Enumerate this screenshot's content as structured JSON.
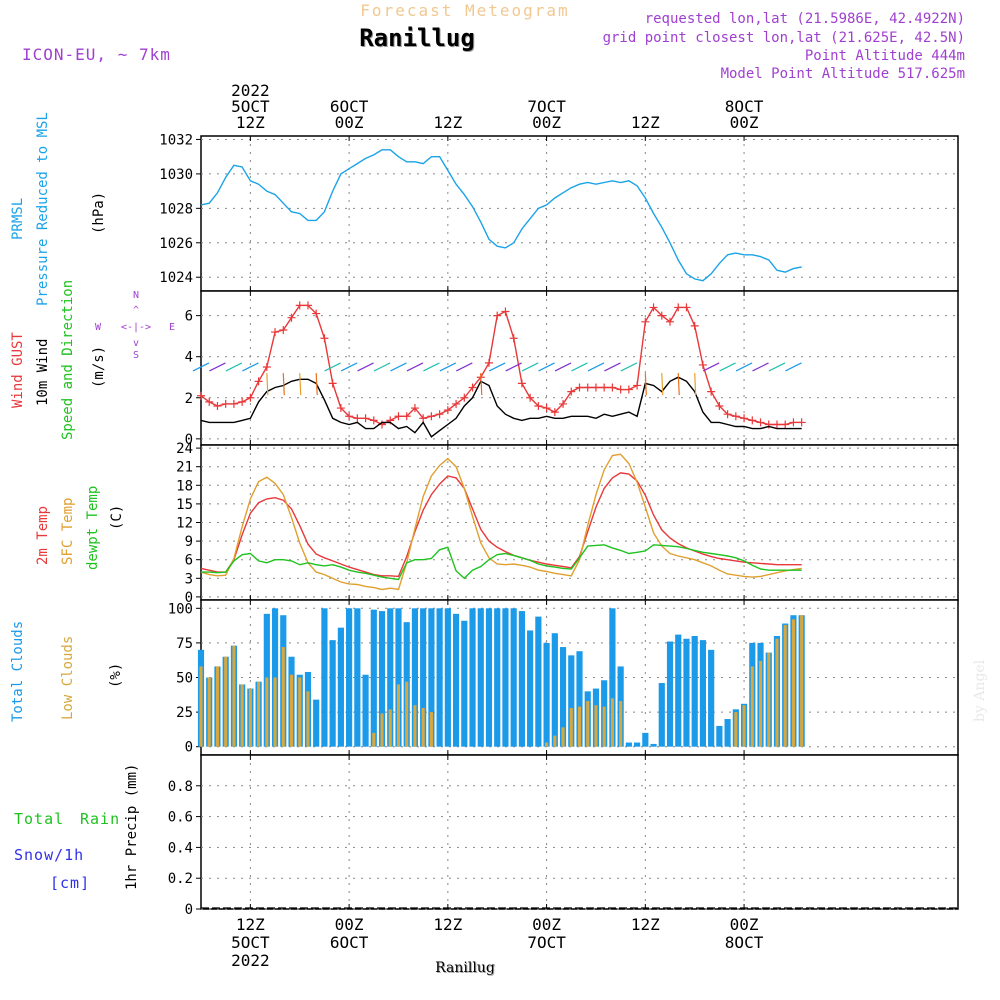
{
  "header": {
    "subtitle": "Forecast Meteogram",
    "title": "Ranillug",
    "model": "ICON-EU, ~ 7km",
    "requested": "requested lon,lat (21.5986E, 42.4922N)",
    "grid_point": "grid point closest lon,lat (21.625E, 42.5N)",
    "point_alt": "Point Altitude 444m",
    "model_alt": "Model Point Altitude 517.625m",
    "bottom_name": "Ranillug",
    "watermark": "by Angel"
  },
  "time_axis": {
    "start_hour": -6,
    "end_hour": 86,
    "top_labels": [
      {
        "hour": 0,
        "lines": [
          "2022",
          "5OCT",
          "12Z"
        ]
      },
      {
        "hour": 12,
        "lines": [
          "6OCT",
          "00Z"
        ]
      },
      {
        "hour": 24,
        "lines": [
          "12Z"
        ]
      },
      {
        "hour": 36,
        "lines": [
          "7OCT",
          "00Z"
        ]
      },
      {
        "hour": 48,
        "lines": [
          "12Z"
        ]
      },
      {
        "hour": 60,
        "lines": [
          "8OCT",
          "00Z"
        ]
      }
    ],
    "bottom_labels": [
      {
        "hour": 0,
        "lines": [
          "12Z",
          "5OCT",
          "2022"
        ]
      },
      {
        "hour": 12,
        "lines": [
          "00Z",
          "6OCT"
        ]
      },
      {
        "hour": 24,
        "lines": [
          "12Z"
        ]
      },
      {
        "hour": 36,
        "lines": [
          "00Z",
          "7OCT"
        ]
      },
      {
        "hour": 48,
        "lines": [
          "12Z"
        ]
      },
      {
        "hour": 60,
        "lines": [
          "00Z",
          "8OCT"
        ]
      }
    ]
  },
  "colors": {
    "pressure": "#1aa3e8",
    "gust": "#e8383a",
    "wind": "#000000",
    "wind_dir": "#1fc21f",
    "temp2m": "#e8383a",
    "sfc": "#e0a030",
    "dewpt": "#1fc21f",
    "clouds_total": "#1a9ae8",
    "clouds_low": "#d8a840",
    "rain": "#1fc21f",
    "snow": "#3030e8",
    "purple": "#a040d0",
    "subtitle": "#f0c890"
  },
  "panels": {
    "pressure": {
      "labels": [
        "PRMSL",
        "Pressure Reduced to MSL"
      ],
      "unit": "(hPa)"
    },
    "wind": {
      "labels": [
        "Wind GUST",
        "10m Wind",
        "Speed and Direction"
      ],
      "unit": "(m/s)",
      "compass": {
        "n": "N",
        "s": "S",
        "w": "W",
        "e": "E"
      }
    },
    "temp": {
      "labels": [
        "2m Temp",
        "SFC Temp",
        "dewpt Temp"
      ],
      "unit": "(C)"
    },
    "cloud": {
      "labels": [
        "Total Clouds",
        "Low Clouds"
      ],
      "unit": "(%)"
    },
    "precip": {
      "labels": [
        "Total",
        "Rain",
        "Snow/1h",
        "[cm]"
      ],
      "unit": "1hr Precip (mm)"
    }
  },
  "chart_data": [
    {
      "type": "line",
      "title": "PRMSL Pressure Reduced to MSL",
      "ylabel": "(hPa)",
      "ylim": [
        1023.2,
        1032.2
      ],
      "yticks": [
        1024,
        1026,
        1028,
        1030,
        1032
      ],
      "x_hours": [
        -6,
        -5,
        -4,
        -3,
        -2,
        -1,
        0,
        1,
        2,
        3,
        4,
        5,
        6,
        7,
        8,
        9,
        10,
        11,
        12,
        13,
        14,
        15,
        16,
        17,
        18,
        19,
        20,
        21,
        22,
        23,
        24,
        25,
        26,
        27,
        28,
        29,
        30,
        31,
        32,
        33,
        34,
        35,
        36,
        37,
        38,
        39,
        40,
        41,
        42,
        43,
        44,
        45,
        46,
        47,
        48,
        49,
        50,
        51,
        52,
        53,
        54,
        55,
        56,
        57,
        58,
        59,
        60,
        61,
        62,
        63,
        64,
        65,
        66,
        67
      ],
      "series": [
        {
          "name": "PRMSL",
          "values": [
            1028.2,
            1028.3,
            1028.9,
            1029.8,
            1030.5,
            1030.4,
            1029.6,
            1029.4,
            1029.0,
            1028.8,
            1028.3,
            1027.8,
            1027.7,
            1027.3,
            1027.3,
            1027.8,
            1029.0,
            1030.0,
            1030.3,
            1030.6,
            1030.9,
            1031.1,
            1031.4,
            1031.4,
            1031.0,
            1030.7,
            1030.7,
            1030.6,
            1031.0,
            1031.0,
            1030.2,
            1029.4,
            1028.8,
            1028.1,
            1027.2,
            1026.2,
            1025.8,
            1025.7,
            1026.0,
            1026.8,
            1027.4,
            1028.0,
            1028.2,
            1028.6,
            1028.9,
            1029.2,
            1029.4,
            1029.5,
            1029.4,
            1029.5,
            1029.6,
            1029.5,
            1029.6,
            1029.3,
            1028.6,
            1027.7,
            1026.9,
            1026.0,
            1025.0,
            1024.2,
            1023.9,
            1023.8,
            1024.2,
            1024.8,
            1025.3,
            1025.4,
            1025.3,
            1025.3,
            1025.2,
            1025.0,
            1024.4,
            1024.3,
            1024.5,
            1024.6
          ]
        }
      ]
    },
    {
      "type": "line",
      "title": "Wind GUST / 10m Wind Speed and Direction",
      "ylabel": "(m/s)",
      "ylim": [
        -0.3,
        7.2
      ],
      "yticks": [
        0,
        2,
        4,
        6
      ],
      "x_hours": [
        -6,
        -5,
        -4,
        -3,
        -2,
        -1,
        0,
        1,
        2,
        3,
        4,
        5,
        6,
        7,
        8,
        9,
        10,
        11,
        12,
        13,
        14,
        15,
        16,
        17,
        18,
        19,
        20,
        21,
        22,
        23,
        24,
        25,
        26,
        27,
        28,
        29,
        30,
        31,
        32,
        33,
        34,
        35,
        36,
        37,
        38,
        39,
        40,
        41,
        42,
        43,
        44,
        45,
        46,
        47,
        48,
        49,
        50,
        51,
        52,
        53,
        54,
        55,
        56,
        57,
        58,
        59,
        60,
        61,
        62,
        63,
        64,
        65,
        66,
        67
      ],
      "series": [
        {
          "name": "Wind GUST",
          "values": [
            2.1,
            1.8,
            1.6,
            1.7,
            1.7,
            1.8,
            2.0,
            2.8,
            3.5,
            5.2,
            5.3,
            5.9,
            6.5,
            6.5,
            6.1,
            4.9,
            2.7,
            1.5,
            1.1,
            1.0,
            1.0,
            0.9,
            0.7,
            0.9,
            1.1,
            1.1,
            1.5,
            1.0,
            1.1,
            1.2,
            1.4,
            1.7,
            2.0,
            2.5,
            3.0,
            3.7,
            6.0,
            6.2,
            4.9,
            2.7,
            2.0,
            1.6,
            1.5,
            1.3,
            1.7,
            2.3,
            2.5,
            2.5,
            2.5,
            2.5,
            2.5,
            2.4,
            2.4,
            2.6,
            5.7,
            6.4,
            6.0,
            5.7,
            6.4,
            6.4,
            5.5,
            3.6,
            2.3,
            1.6,
            1.2,
            1.1,
            1.0,
            0.9,
            0.8,
            0.7,
            0.7,
            0.7,
            0.8,
            0.8
          ]
        },
        {
          "name": "10m Wind",
          "values": [
            0.9,
            0.8,
            0.8,
            0.8,
            0.8,
            0.9,
            1.0,
            1.8,
            2.3,
            2.5,
            2.6,
            2.8,
            2.9,
            2.9,
            2.7,
            1.9,
            1.0,
            0.8,
            0.7,
            0.8,
            0.5,
            0.5,
            0.8,
            0.8,
            0.5,
            0.6,
            0.3,
            0.8,
            0.1,
            0.4,
            0.7,
            1.0,
            1.6,
            2.0,
            2.8,
            2.6,
            1.6,
            1.2,
            1.0,
            0.9,
            1.0,
            1.0,
            1.1,
            1.0,
            1.0,
            1.1,
            1.1,
            1.1,
            1.0,
            1.2,
            1.1,
            1.2,
            1.3,
            1.1,
            2.7,
            2.6,
            2.3,
            2.8,
            3.0,
            2.8,
            2.3,
            1.3,
            0.8,
            0.8,
            0.7,
            0.6,
            0.6,
            0.5,
            0.5,
            0.6,
            0.5,
            0.5,
            0.5,
            0.5
          ]
        }
      ]
    },
    {
      "type": "line",
      "title": "2m Temp / SFC Temp / dewpt Temp",
      "ylabel": "(C)",
      "ylim": [
        -0.5,
        24.5
      ],
      "yticks": [
        0,
        3,
        6,
        9,
        12,
        15,
        18,
        21,
        24
      ],
      "x_hours": [
        -6,
        -5,
        -4,
        -3,
        -2,
        -1,
        0,
        1,
        2,
        3,
        4,
        5,
        6,
        7,
        8,
        9,
        10,
        11,
        12,
        13,
        14,
        15,
        16,
        17,
        18,
        19,
        20,
        21,
        22,
        23,
        24,
        25,
        26,
        27,
        28,
        29,
        30,
        31,
        32,
        33,
        34,
        35,
        36,
        37,
        38,
        39,
        40,
        41,
        42,
        43,
        44,
        45,
        46,
        47,
        48,
        49,
        50,
        51,
        52,
        53,
        54,
        55,
        56,
        57,
        58,
        59,
        60,
        61,
        62,
        63,
        64,
        65,
        66,
        67
      ],
      "series": [
        {
          "name": "2m Temp",
          "values": [
            4.6,
            4.3,
            4.0,
            4.0,
            6.0,
            10.0,
            13.5,
            15.2,
            15.8,
            16.0,
            15.6,
            14.2,
            11.5,
            8.5,
            6.9,
            6.3,
            5.8,
            5.3,
            4.8,
            4.4,
            4.0,
            3.6,
            3.4,
            3.4,
            3.3,
            6.5,
            10.5,
            14.0,
            16.5,
            18.2,
            19.5,
            19.2,
            17.5,
            14.2,
            10.9,
            9.0,
            8.0,
            7.3,
            6.7,
            6.3,
            5.9,
            5.6,
            5.3,
            5.1,
            4.9,
            4.7,
            6.5,
            10.5,
            14.5,
            17.5,
            19.2,
            20.0,
            19.8,
            18.7,
            16.4,
            13.2,
            10.8,
            9.5,
            8.6,
            7.9,
            7.4,
            6.9,
            6.5,
            6.2,
            6.0,
            5.8,
            5.6,
            5.5,
            5.4,
            5.3,
            5.2,
            5.2,
            5.2,
            5.2
          ]
        },
        {
          "name": "SFC Temp",
          "values": [
            4.0,
            3.6,
            3.4,
            3.5,
            6.2,
            11.3,
            15.8,
            18.6,
            19.3,
            18.3,
            16.5,
            12.8,
            8.7,
            5.5,
            4.0,
            3.6,
            3.0,
            2.4,
            2.1,
            2.0,
            1.7,
            1.5,
            1.2,
            1.4,
            1.2,
            5.5,
            11.0,
            16.2,
            19.5,
            21.2,
            22.3,
            21.0,
            17.5,
            13.0,
            8.7,
            6.3,
            5.3,
            5.2,
            5.3,
            5.1,
            4.8,
            4.3,
            4.1,
            3.8,
            3.6,
            3.4,
            6.0,
            11.5,
            16.5,
            20.5,
            22.8,
            23.0,
            21.5,
            18.5,
            14.5,
            10.3,
            8.2,
            7.0,
            6.6,
            6.3,
            6.0,
            5.5,
            5.0,
            4.3,
            3.7,
            3.5,
            3.3,
            3.2,
            3.3,
            3.6,
            3.9,
            4.2,
            4.4,
            4.6
          ]
        },
        {
          "name": "dewpt Temp",
          "values": [
            4.0,
            4.0,
            3.9,
            4.0,
            5.8,
            6.8,
            7.0,
            5.8,
            5.5,
            6.0,
            6.0,
            5.8,
            5.2,
            5.5,
            5.2,
            5.0,
            5.2,
            4.8,
            4.3,
            4.0,
            3.8,
            3.5,
            3.2,
            3.0,
            2.8,
            5.5,
            6.0,
            6.0,
            6.2,
            7.6,
            8.0,
            4.2,
            3.0,
            4.3,
            4.9,
            6.0,
            6.8,
            7.0,
            6.7,
            6.3,
            5.9,
            5.3,
            5.0,
            4.8,
            4.6,
            4.5,
            6.3,
            8.2,
            8.3,
            8.4,
            7.9,
            7.5,
            7.0,
            7.2,
            7.4,
            8.4,
            8.3,
            8.2,
            8.1,
            7.8,
            7.5,
            7.2,
            7.0,
            6.8,
            6.6,
            6.3,
            5.8,
            5.1,
            4.5,
            4.3,
            4.3,
            4.3,
            4.3,
            4.3
          ]
        }
      ]
    },
    {
      "type": "bar",
      "title": "Total Clouds / Low Clouds",
      "ylabel": "(%)",
      "ylim": [
        -6,
        106
      ],
      "yticks": [
        0,
        25,
        50,
        75,
        100
      ],
      "x_hours": [
        -6,
        -5,
        -4,
        -3,
        -2,
        -1,
        0,
        1,
        2,
        3,
        4,
        5,
        6,
        7,
        8,
        9,
        10,
        11,
        12,
        13,
        14,
        15,
        16,
        17,
        18,
        19,
        20,
        21,
        22,
        23,
        24,
        25,
        26,
        27,
        28,
        29,
        30,
        31,
        32,
        33,
        34,
        35,
        36,
        37,
        38,
        39,
        40,
        41,
        42,
        43,
        44,
        45,
        46,
        47,
        48,
        49,
        50,
        51,
        52,
        53,
        54,
        55,
        56,
        57,
        58,
        59,
        60,
        61,
        62,
        63,
        64,
        65,
        66,
        67
      ],
      "series": [
        {
          "name": "Total Clouds",
          "values": [
            70,
            50,
            58,
            65,
            73,
            45,
            42,
            47,
            96,
            100,
            95,
            65,
            52,
            54,
            34,
            100,
            77,
            86,
            100,
            100,
            52,
            99,
            98,
            100,
            100,
            90,
            100,
            100,
            100,
            100,
            100,
            96,
            91,
            100,
            100,
            100,
            100,
            100,
            100,
            98,
            84,
            94,
            75,
            82,
            72,
            66,
            69,
            40,
            42,
            48,
            100,
            58,
            3,
            3,
            10,
            2,
            46,
            76,
            81,
            78,
            80,
            77,
            70,
            15,
            20,
            27,
            31,
            75,
            75,
            68,
            80,
            89,
            95,
            95
          ]
        },
        {
          "name": "Low Clouds",
          "values": [
            58,
            50,
            58,
            65,
            73,
            45,
            42,
            47,
            50,
            50,
            72,
            52,
            50,
            40,
            0,
            0,
            0,
            0,
            0,
            0,
            0,
            10,
            24,
            27,
            45,
            47,
            30,
            28,
            25,
            0,
            0,
            0,
            0,
            0,
            0,
            0,
            0,
            0,
            0,
            0,
            0,
            0,
            3,
            8,
            14,
            28,
            29,
            33,
            30,
            29,
            35,
            33,
            0,
            0,
            0,
            0,
            0,
            0,
            0,
            0,
            0,
            0,
            0,
            0,
            0,
            25,
            30,
            58,
            62,
            68,
            78,
            88,
            92,
            95
          ]
        }
      ]
    },
    {
      "type": "bar",
      "title": "1hr Precip (mm)",
      "ylabel": "1hr Precip (mm)",
      "ylim": [
        0,
        1.0
      ],
      "yticks": [
        0,
        0.2,
        0.4,
        0.6,
        0.8
      ],
      "categories": [],
      "series": [
        {
          "name": "Total Rain",
          "values": []
        },
        {
          "name": "Snow/1h",
          "values": []
        }
      ]
    }
  ]
}
